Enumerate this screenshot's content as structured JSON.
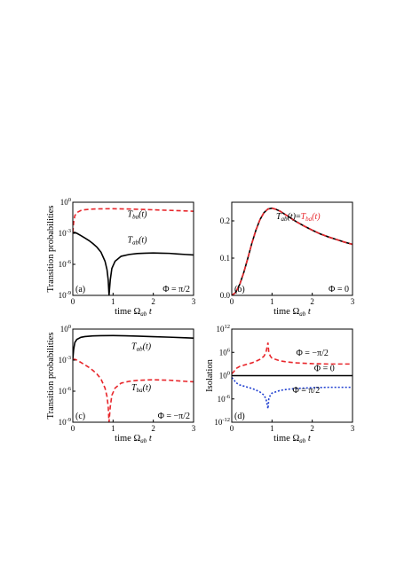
{
  "chart_data": [
    {
      "panel": "(a)",
      "type": "line",
      "xlabel": "time Ω_ab t",
      "ylabel": "Transition probabilities",
      "xlim": [
        0,
        3
      ],
      "xticks": [
        "0",
        "1",
        "2",
        "3"
      ],
      "yscale": "log",
      "ylim_exp": [
        -9,
        0
      ],
      "yticks": [
        {
          "base": "10",
          "exp": "0"
        },
        {
          "base": "10",
          "exp": "-3"
        },
        {
          "base": "10",
          "exp": "-6"
        },
        {
          "base": "10",
          "exp": "-9"
        }
      ],
      "phi_label": "Φ = π/2",
      "series": [
        {
          "name": "T_ab(t)",
          "color": "#000000",
          "style": "solid",
          "x": [
            0,
            0.05,
            0.1,
            0.2,
            0.3,
            0.4,
            0.5,
            0.6,
            0.7,
            0.8,
            0.85,
            0.88,
            0.9,
            0.93,
            0.97,
            1.05,
            1.2,
            1.4,
            1.6,
            1.8,
            2.0,
            2.2,
            2.4,
            2.6,
            2.8,
            3.0
          ],
          "y": [
            0.0012,
            0.0012,
            0.001,
            0.0006,
            0.00035,
            0.0002,
            0.0001,
            4.5e-05,
            1.5e-05,
            2e-06,
            3e-07,
            3e-08,
            1e-09,
            3e-08,
            4e-07,
            2e-06,
            6e-06,
            9e-06,
            1.1e-05,
            1.2e-05,
            1.25e-05,
            1.2e-05,
            1.15e-05,
            1e-05,
            9e-06,
            8e-06
          ]
        },
        {
          "name": "T_ba(t)",
          "color": "#e8262b",
          "style": "dashed",
          "x": [
            0,
            0.02,
            0.05,
            0.1,
            0.2,
            0.3,
            0.5,
            0.7,
            1.0,
            1.3,
            1.6,
            2.0,
            2.4,
            2.8,
            3.0
          ],
          "y": [
            0.0012,
            0.01,
            0.05,
            0.1,
            0.16,
            0.19,
            0.22,
            0.232,
            0.235,
            0.225,
            0.21,
            0.185,
            0.165,
            0.145,
            0.135
          ]
        }
      ],
      "annotations": [
        {
          "series": "T_ba(t)",
          "color": "#e8262b"
        },
        {
          "series": "T_ab(t)",
          "color": "#000000"
        }
      ]
    },
    {
      "panel": "(b)",
      "type": "line",
      "xlabel": "time Ω_ab t",
      "ylabel": "",
      "xlim": [
        0,
        3
      ],
      "xticks": [
        "0",
        "1",
        "2",
        "3"
      ],
      "yscale": "linear",
      "ylim": [
        0,
        0.25
      ],
      "yticks": [
        "0.0",
        "0.1",
        "0.2"
      ],
      "phi_label": "Φ = 0",
      "annotation": "T_ab(t)=T_ba(t)",
      "series": [
        {
          "name": "T_ab(t)",
          "color": "#000000",
          "style": "solid",
          "x": [
            0,
            0.1,
            0.2,
            0.3,
            0.4,
            0.5,
            0.6,
            0.7,
            0.8,
            0.9,
            1.0,
            1.1,
            1.2,
            1.4,
            1.6,
            1.8,
            2.0,
            2.2,
            2.4,
            2.6,
            2.8,
            3.0
          ],
          "y": [
            0,
            0.008,
            0.03,
            0.062,
            0.1,
            0.14,
            0.175,
            0.203,
            0.222,
            0.232,
            0.234,
            0.231,
            0.226,
            0.212,
            0.198,
            0.186,
            0.175,
            0.165,
            0.157,
            0.15,
            0.143,
            0.137
          ]
        },
        {
          "name": "T_ba(t)",
          "color": "#e8262b",
          "style": "dashed",
          "x": [
            0,
            0.1,
            0.2,
            0.3,
            0.4,
            0.5,
            0.6,
            0.7,
            0.8,
            0.9,
            1.0,
            1.1,
            1.2,
            1.4,
            1.6,
            1.8,
            2.0,
            2.2,
            2.4,
            2.6,
            2.8,
            3.0
          ],
          "y": [
            0,
            0.008,
            0.03,
            0.062,
            0.1,
            0.14,
            0.175,
            0.203,
            0.222,
            0.232,
            0.234,
            0.231,
            0.226,
            0.212,
            0.198,
            0.186,
            0.175,
            0.165,
            0.157,
            0.15,
            0.143,
            0.137
          ]
        }
      ]
    },
    {
      "panel": "(c)",
      "type": "line",
      "xlabel": "time Ω_ab t",
      "ylabel": "Transition probabilities",
      "xlim": [
        0,
        3
      ],
      "xticks": [
        "0",
        "1",
        "2",
        "3"
      ],
      "yscale": "log",
      "ylim_exp": [
        -9,
        0
      ],
      "yticks": [
        {
          "base": "10",
          "exp": "0"
        },
        {
          "base": "10",
          "exp": "-3"
        },
        {
          "base": "10",
          "exp": "-6"
        },
        {
          "base": "10",
          "exp": "-9"
        }
      ],
      "phi_label": "Φ = −π/2",
      "series": [
        {
          "name": "T_ab(t)",
          "color": "#000000",
          "style": "solid",
          "x": [
            0,
            0.02,
            0.05,
            0.1,
            0.2,
            0.3,
            0.5,
            0.7,
            1.0,
            1.3,
            1.6,
            2.0,
            2.4,
            2.8,
            3.0
          ],
          "y": [
            0.0012,
            0.01,
            0.05,
            0.1,
            0.16,
            0.19,
            0.22,
            0.232,
            0.235,
            0.225,
            0.21,
            0.185,
            0.165,
            0.145,
            0.135
          ]
        },
        {
          "name": "T_ba(t)",
          "color": "#e8262b",
          "style": "dashed",
          "x": [
            0,
            0.05,
            0.1,
            0.2,
            0.3,
            0.4,
            0.5,
            0.6,
            0.7,
            0.8,
            0.85,
            0.88,
            0.9,
            0.93,
            0.97,
            1.05,
            1.2,
            1.4,
            1.6,
            1.8,
            2.0,
            2.2,
            2.4,
            2.6,
            2.8,
            3.0
          ],
          "y": [
            0.0012,
            0.0012,
            0.001,
            0.0006,
            0.00035,
            0.0002,
            0.0001,
            4.5e-05,
            1.5e-05,
            2e-06,
            3e-07,
            3e-08,
            1e-09,
            3e-08,
            4e-07,
            2e-06,
            6e-06,
            9e-06,
            1.1e-05,
            1.2e-05,
            1.25e-05,
            1.2e-05,
            1.15e-05,
            1e-05,
            9e-06,
            8e-06
          ]
        }
      ],
      "annotations": [
        {
          "series": "T_ab(t)",
          "color": "#000000"
        },
        {
          "series": "T_ba(t)",
          "color": "#e8262b"
        }
      ]
    },
    {
      "panel": "(d)",
      "type": "line",
      "xlabel": "time Ω_ab t",
      "ylabel": "Isolation",
      "xlim": [
        0,
        3
      ],
      "xticks": [
        "0",
        "1",
        "2",
        "3"
      ],
      "yscale": "log",
      "ylim_exp": [
        -12,
        12
      ],
      "yticks": [
        {
          "base": "10",
          "exp": "12"
        },
        {
          "base": "10",
          "exp": "6"
        },
        {
          "base": "10",
          "exp": "0"
        },
        {
          "base": "10",
          "exp": "-6"
        },
        {
          "base": "10",
          "exp": "-12"
        }
      ],
      "series": [
        {
          "name": "Φ = −π/2",
          "color": "#e8262b",
          "style": "dashed",
          "x": [
            0,
            0.05,
            0.1,
            0.2,
            0.3,
            0.4,
            0.5,
            0.6,
            0.7,
            0.8,
            0.85,
            0.88,
            0.9,
            0.92,
            0.96,
            1.0,
            1.2,
            1.4,
            1.6,
            2.0,
            2.4,
            2.8,
            3.0
          ],
          "y_exp": [
            0.5,
            1.0,
            1.8,
            2.4,
            2.7,
            3.0,
            3.3,
            3.7,
            4.2,
            5.0,
            6.0,
            7.5,
            8.5,
            6.0,
            5.0,
            4.5,
            3.8,
            3.5,
            3.3,
            3.1,
            3.0,
            3.0,
            3.0
          ]
        },
        {
          "name": "Φ = 0",
          "color": "#000000",
          "style": "solid",
          "x": [
            0,
            3
          ],
          "y_exp": [
            0,
            0
          ]
        },
        {
          "name": "Φ = π/2",
          "color": "#1f3fd0",
          "style": "dotted",
          "x": [
            0,
            0.05,
            0.1,
            0.2,
            0.3,
            0.4,
            0.5,
            0.6,
            0.7,
            0.8,
            0.85,
            0.88,
            0.9,
            0.92,
            0.96,
            1.0,
            1.2,
            1.4,
            1.6,
            2.0,
            2.4,
            2.8,
            3.0
          ],
          "y_exp": [
            -0.5,
            -1.0,
            -1.8,
            -2.4,
            -2.7,
            -3.0,
            -3.3,
            -3.7,
            -4.2,
            -5.0,
            -6.0,
            -7.5,
            -8.5,
            -6.0,
            -5.0,
            -4.5,
            -3.8,
            -3.5,
            -3.3,
            -3.1,
            -3.0,
            -3.0,
            -3.0
          ]
        }
      ]
    }
  ]
}
